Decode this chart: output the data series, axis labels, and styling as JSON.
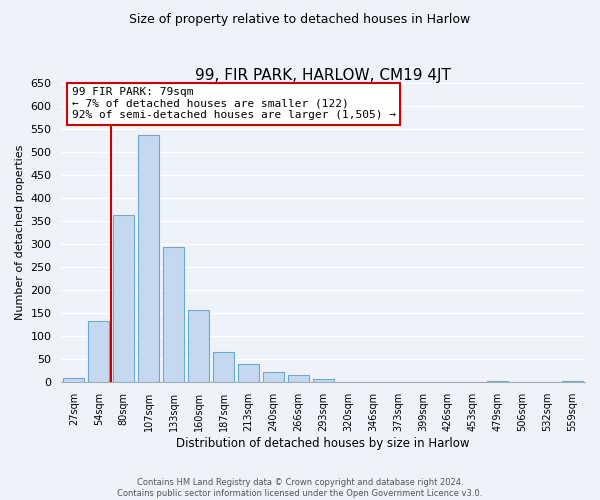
{
  "title": "99, FIR PARK, HARLOW, CM19 4JT",
  "subtitle": "Size of property relative to detached houses in Harlow",
  "xlabel": "Distribution of detached houses by size in Harlow",
  "ylabel": "Number of detached properties",
  "bin_labels": [
    "27sqm",
    "54sqm",
    "80sqm",
    "107sqm",
    "133sqm",
    "160sqm",
    "187sqm",
    "213sqm",
    "240sqm",
    "266sqm",
    "293sqm",
    "320sqm",
    "346sqm",
    "373sqm",
    "399sqm",
    "426sqm",
    "453sqm",
    "479sqm",
    "506sqm",
    "532sqm",
    "559sqm"
  ],
  "bar_values": [
    10,
    133,
    363,
    537,
    293,
    157,
    65,
    40,
    22,
    15,
    8,
    0,
    0,
    0,
    0,
    0,
    0,
    3,
    0,
    0,
    3
  ],
  "bar_color": "#c5d8f0",
  "bar_edge_color": "#6aaad4",
  "annotation_line1": "99 FIR PARK: 79sqm",
  "annotation_line2": "← 7% of detached houses are smaller (122)",
  "annotation_line3": "92% of semi-detached houses are larger (1,505) →",
  "annotation_box_color": "#ffffff",
  "annotation_box_edge": "#cc0000",
  "line_color": "#cc0000",
  "footer_line1": "Contains HM Land Registry data © Crown copyright and database right 2024.",
  "footer_line2": "Contains public sector information licensed under the Open Government Licence v3.0.",
  "ylim": [
    0,
    650
  ],
  "yticks": [
    0,
    50,
    100,
    150,
    200,
    250,
    300,
    350,
    400,
    450,
    500,
    550,
    600,
    650
  ],
  "bg_color": "#eef2fa",
  "grid_color": "#d0d8e8",
  "property_bar_index": 2
}
